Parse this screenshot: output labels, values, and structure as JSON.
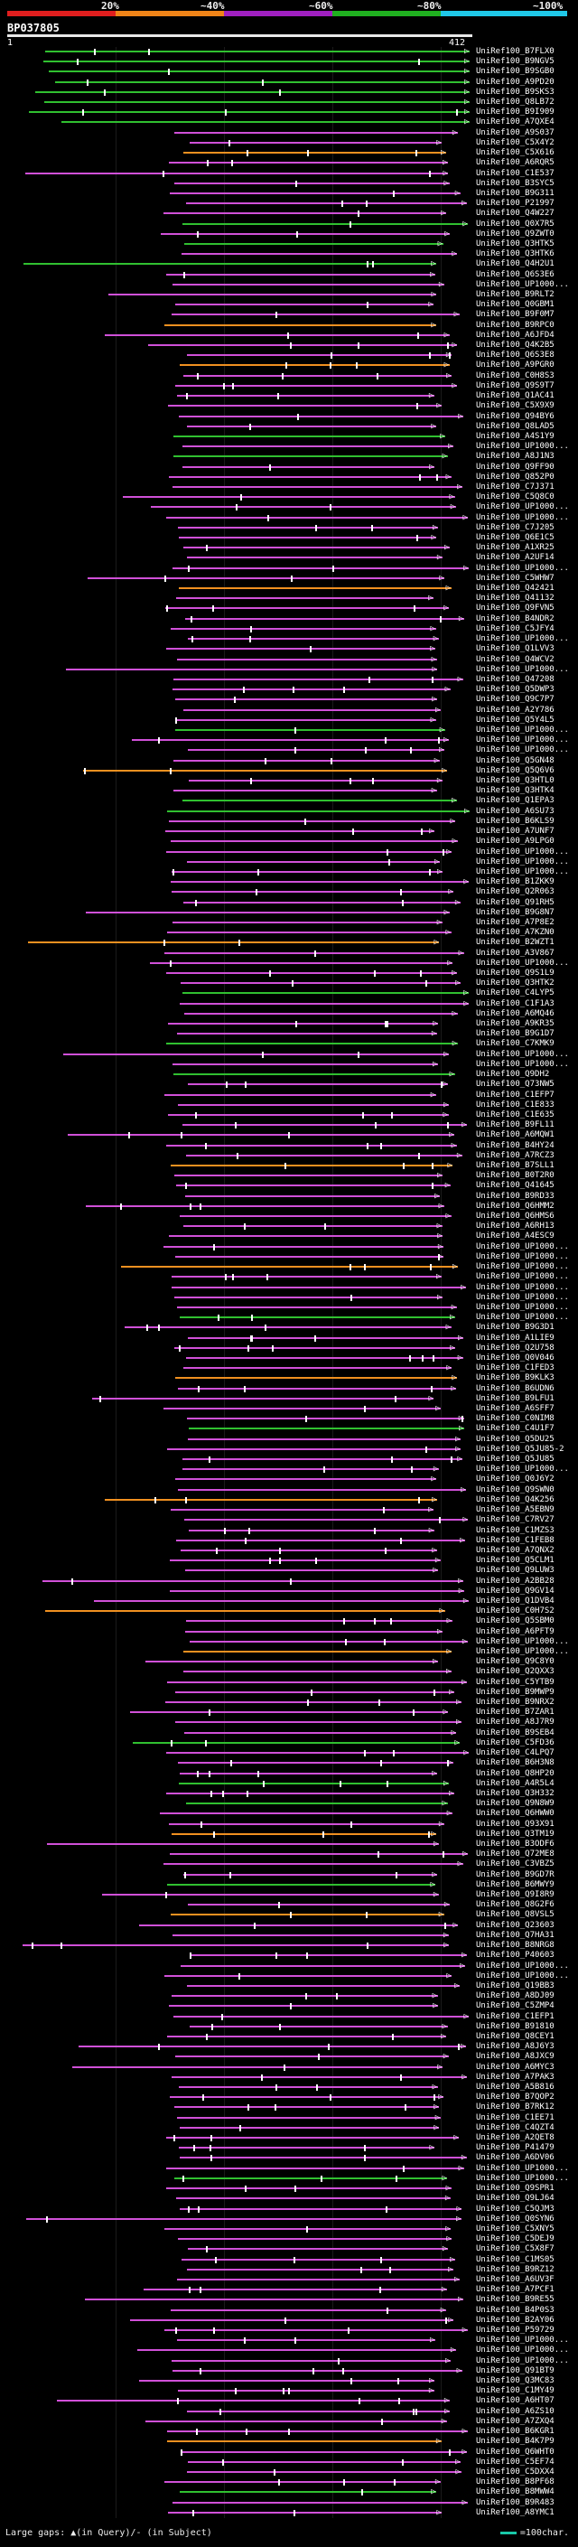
{
  "scale": {
    "labels": [
      "20%",
      "~40%",
      "~60%",
      "~80%",
      "~100%"
    ],
    "colors": [
      "#e01e1e",
      "#f08418",
      "#a020c0",
      "#20b020",
      "#20c8e8"
    ]
  },
  "query": {
    "id": "BP037805",
    "start": "1",
    "end": "412"
  },
  "colors": {
    "magenta": "#d050d8",
    "green": "#30c030",
    "orange": "#f09020",
    "purple": "#9030b0"
  },
  "hits": [
    "UniRef100_B7FLX0",
    "UniRef100_B9NGV5",
    "UniRef100_B9SGB0",
    "UniRef100_A9PD20",
    "UniRef100_B9SKS3",
    "UniRef100_Q8LB72",
    "UniRef100_B9I909",
    "UniRef100_A7QXE4",
    "UniRef100_A9S037",
    "UniRef100_C5X4Y2",
    "UniRef100_C5X616",
    "UniRef100_A6RQR5",
    "UniRef100_C1E537",
    "UniRef100_B3SYC5",
    "UniRef100_B9G311",
    "UniRef100_P21997",
    "UniRef100_Q4W227",
    "UniRef100_Q0X7R5",
    "UniRef100_Q9ZWT0",
    "UniRef100_Q3HTK5",
    "UniRef100_Q3HTK6",
    "UniRef100_Q4H2U1",
    "UniRef100_Q6S3E6",
    "UniRef100_UP1000...",
    "UniRef100_B9RLT2",
    "UniRef100_Q0GBM1",
    "UniRef100_B9F0M7",
    "UniRef100_B9RPC0",
    "UniRef100_A6JFD4",
    "UniRef100_Q4K2B5",
    "UniRef100_Q6S3E8",
    "UniRef100_A9PGR0",
    "UniRef100_C0H8S3",
    "UniRef100_Q9S9T7",
    "UniRef100_Q1AC41",
    "UniRef100_C5X9X9",
    "UniRef100_Q94BY6",
    "UniRef100_Q8LAD5",
    "UniRef100_A4S1Y9",
    "UniRef100_UP1000...",
    "UniRef100_A8J1N3",
    "UniRef100_Q9FF90",
    "UniRef100_Q852P0",
    "UniRef100_C7J371",
    "UniRef100_C5Q8C0",
    "UniRef100_UP1000...",
    "UniRef100_UP1000...",
    "UniRef100_C7J205",
    "UniRef100_Q6E1C5",
    "UniRef100_A1XR25",
    "UniRef100_A2UF14",
    "UniRef100_UP1000...",
    "UniRef100_C5WHW7",
    "UniRef100_Q42421",
    "UniRef100_Q41132",
    "UniRef100_Q9FVN5",
    "UniRef100_B4NDR2",
    "UniRef100_C5JFY4",
    "UniRef100_UP1000...",
    "UniRef100_Q1LVV3",
    "UniRef100_Q4WCV2",
    "UniRef100_UP1000...",
    "UniRef100_Q47208",
    "UniRef100_Q5DWP3",
    "UniRef100_Q9C7P7",
    "UniRef100_A2Y786",
    "UniRef100_Q5Y4L5",
    "UniRef100_UP1000...",
    "UniRef100_UP1000...",
    "UniRef100_UP1000...",
    "UniRef100_Q5GN48",
    "UniRef100_Q5Q6V6",
    "UniRef100_Q3HTL0",
    "UniRef100_Q3HTK4",
    "UniRef100_Q1EPA3",
    "UniRef100_A6SU73",
    "UniRef100_B6KLS9",
    "UniRef100_A7UNF7",
    "UniRef100_A9LPG0",
    "UniRef100_UP1000...",
    "UniRef100_UP1000...",
    "UniRef100_UP1000...",
    "UniRef100_B1ZKK9",
    "UniRef100_Q2R063",
    "UniRef100_Q91RH5",
    "UniRef100_B9G8N7",
    "UniRef100_A7P8E2",
    "UniRef100_A7KZN0",
    "UniRef100_B2WZT1",
    "UniRef100_A3V867",
    "UniRef100_UP1000...",
    "UniRef100_Q9S1L9",
    "UniRef100_Q3HTK2",
    "UniRef100_C4LYP5",
    "UniRef100_C1F1A3",
    "UniRef100_A6MQ46",
    "UniRef100_A9KR35",
    "UniRef100_B9G1D7",
    "UniRef100_C7KMK9",
    "UniRef100_UP1000...",
    "UniRef100_UP1000...",
    "UniRef100_Q9DH2",
    "UniRef100_Q73NW5",
    "UniRef100_C1EFP7",
    "UniRef100_C1E833",
    "UniRef100_C1E635",
    "UniRef100_B9FL11",
    "UniRef100_A6MQW1",
    "UniRef100_B4HY24",
    "UniRef100_A7RCZ3",
    "UniRef100_B7SLL1",
    "UniRef100_B0T2R0",
    "UniRef100_Q41645",
    "UniRef100_B9RD33",
    "UniRef100_Q6HMM2",
    "UniRef100_Q6HMS6",
    "UniRef100_A6RH13",
    "UniRef100_A4ESC9",
    "UniRef100_UP1000...",
    "UniRef100_UP1000...",
    "UniRef100_UP1000...",
    "UniRef100_UP1000...",
    "UniRef100_UP1000...",
    "UniRef100_UP1000...",
    "UniRef100_UP1000...",
    "UniRef100_UP1000...",
    "UniRef100_B9G3D1",
    "UniRef100_A1LIE9",
    "UniRef100_Q2U758",
    "UniRef100_Q0V046",
    "UniRef100_C1FED3",
    "UniRef100_B9KLK3",
    "UniRef100_B6UDN6",
    "UniRef100_B9LFU1",
    "UniRef100_A6SFF7",
    "UniRef100_C0NIM8",
    "UniRef100_C4U1F7",
    "UniRef100_Q5DU25",
    "UniRef100_Q5JU85-2",
    "UniRef100_Q5JU85",
    "UniRef100_UP1000...",
    "UniRef100_Q0J6Y2",
    "UniRef100_Q9SWN0",
    "UniRef100_Q4K256",
    "UniRef100_A5EBN9",
    "UniRef100_C7RV27",
    "UniRef100_C1MZS3",
    "UniRef100_C1FEB8",
    "UniRef100_A7QNX2",
    "UniRef100_Q5CLM1",
    "UniRef100_Q9LUW3",
    "UniRef100_A2BB28",
    "UniRef100_Q9GV14",
    "UniRef100_Q1DVB4",
    "UniRef100_C0H7S2",
    "UniRef100_Q5SBM0",
    "UniRef100_A6PFT9",
    "UniRef100_UP1000...",
    "UniRef100_UP1000...",
    "UniRef100_Q9C8Y0",
    "UniRef100_Q2QXX3",
    "UniRef100_C5YTB9",
    "UniRef100_B9MWP9",
    "UniRef100_B9NRX2",
    "UniRef100_B7ZAR1",
    "UniRef100_A8J7R9",
    "UniRef100_B9SEB4",
    "UniRef100_C5FD36",
    "UniRef100_C4LPQ7",
    "UniRef100_B6H3N8",
    "UniRef100_Q8HP20",
    "UniRef100_A4R5L4",
    "UniRef100_Q3H332",
    "UniRef100_Q9N8W9",
    "UniRef100_Q6HWW0",
    "UniRef100_Q93X91",
    "UniRef100_Q3TM19",
    "UniRef100_B3ODF6",
    "UniRef100_Q72ME8",
    "UniRef100_C3VBZ5",
    "UniRef100_B9GD7R",
    "UniRef100_B6MWY9",
    "UniRef100_Q9I8R9",
    "UniRef100_Q8G2F6",
    "UniRef100_Q8VSL5",
    "UniRef100_Q23603",
    "UniRef100_Q7HA31",
    "UniRef100_B8NRG8",
    "UniRef100_P40603",
    "UniRef100_UP1000...",
    "UniRef100_UP1000...",
    "UniRef100_Q19BB3",
    "UniRef100_A8DJ09",
    "UniRef100_C5ZMP4",
    "UniRef100_C1EFP1",
    "UniRef100_B91810",
    "UniRef100_Q8CEY1",
    "UniRef100_A8J6Y3",
    "UniRef100_A8JXC9",
    "UniRef100_A6MYC3",
    "UniRef100_A7PAK3",
    "UniRef100_A5B816",
    "UniRef100_B7QOP2",
    "UniRef100_B7RK12",
    "UniRef100_C1EE71",
    "UniRef100_C4QZT4",
    "UniRef100_A2QET8",
    "UniRef100_P41479",
    "UniRef100_A6DV06",
    "UniRef100_UP1000...",
    "UniRef100_UP1000...",
    "UniRef100_Q9SPR1",
    "UniRef100_Q9LJ64",
    "UniRef100_C5QJM3",
    "UniRef100_Q0SYN6",
    "UniRef100_C5XNY5",
    "UniRef100_C5DEJ9",
    "UniRef100_C5X8F7",
    "UniRef100_C1MS05",
    "UniRef100_B9RZ12",
    "UniRef100_A6UV3F",
    "UniRef100_A7PCF1",
    "UniRef100_B9RE55",
    "UniRef100_B4P0S3",
    "UniRef100_B2AY06",
    "UniRef100_P59729",
    "UniRef100_UP1000...",
    "UniRef100_UP1000...",
    "UniRef100_UP1000...",
    "UniRef100_Q91BT9",
    "UniRef100_Q3MC83",
    "UniRef100_C1MY49",
    "UniRef100_A6HT07",
    "UniRef100_A6ZS10",
    "UniRef100_A7ZXQ4",
    "UniRef100_B6KGR1",
    "UniRef100_B4K7P9",
    "UniRef100_Q6WHT0",
    "UniRef100_C5EF74",
    "UniRef100_C5DXX4",
    "UniRef100_B8PF68",
    "UniRef100_B8MWW4",
    "UniRef100_B9R483",
    "UniRef100_A8YMC1"
  ],
  "footer": {
    "large_gaps": "Large gaps: ▲(in Query)/- (in Subject)",
    "scale_note": "=100char."
  }
}
